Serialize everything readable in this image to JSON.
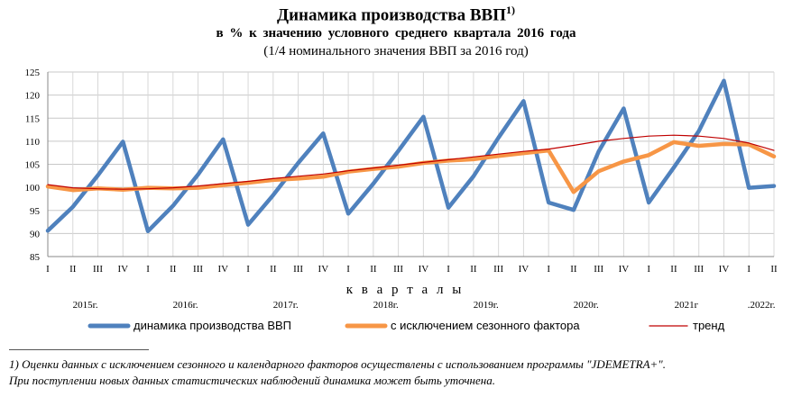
{
  "chart_data": {
    "type": "line",
    "title": "Динамика производства ВВП",
    "title_superscript": "1)",
    "subtitle": "в % к значению условного среднего квартала 2016 года",
    "subtitle2": "(1/4 номинального значения ВВП за 2016 год)",
    "xlabel": "к в а р т а л ы",
    "ylim": [
      85,
      125
    ],
    "yticks": [
      85,
      90,
      95,
      100,
      105,
      110,
      115,
      120,
      125
    ],
    "grid": true,
    "legend_position": "bottom",
    "quarters": [
      "I",
      "II",
      "III",
      "IV",
      "I",
      "II",
      "III",
      "IV",
      "I",
      "II",
      "III",
      "IV",
      "I",
      "II",
      "III",
      "IV",
      "I",
      "II",
      "III",
      "IV",
      "I",
      "II",
      "III",
      "IV",
      "I",
      "II",
      "III",
      "IV",
      "I",
      "II"
    ],
    "years": [
      {
        "label": "2015г.",
        "start": 0,
        "count": 4
      },
      {
        "label": "2016г.",
        "start": 4,
        "count": 4
      },
      {
        "label": "2017г.",
        "start": 8,
        "count": 4
      },
      {
        "label": "2018г.",
        "start": 12,
        "count": 4
      },
      {
        "label": "2019г.",
        "start": 16,
        "count": 4
      },
      {
        "label": "2020г.",
        "start": 20,
        "count": 4
      },
      {
        "label": "2021г",
        "start": 24,
        "count": 4
      },
      {
        "label": ".2022г.",
        "start": 28,
        "count": 2
      }
    ],
    "series": [
      {
        "name": "динамика производства ВВП",
        "color": "#4f81bd",
        "values": [
          90.6,
          95.8,
          102.6,
          109.9,
          90.5,
          96.0,
          102.8,
          110.4,
          91.9,
          98.3,
          105.3,
          111.7,
          94.3,
          100.8,
          107.9,
          115.3,
          95.6,
          102.4,
          110.8,
          118.7,
          96.7,
          95.1,
          107.8,
          117.1,
          96.7,
          104.3,
          112.2,
          123.1,
          99.9,
          100.3
        ]
      },
      {
        "name": "с исключением сезонного фактора",
        "color": "#f79646",
        "values": [
          100.2,
          99.4,
          99.8,
          99.5,
          99.9,
          99.8,
          99.9,
          100.5,
          101.0,
          101.6,
          101.9,
          102.3,
          103.4,
          104.0,
          104.5,
          105.3,
          105.8,
          106.1,
          106.8,
          107.4,
          108.0,
          99.0,
          103.5,
          105.6,
          107.0,
          109.8,
          109.0,
          109.4,
          109.3,
          106.7
        ]
      },
      {
        "name": "тренд",
        "color": "#c00000",
        "values": [
          100.6,
          99.9,
          99.7,
          99.6,
          99.7,
          99.9,
          100.3,
          100.8,
          101.3,
          101.9,
          102.4,
          102.9,
          103.6,
          104.2,
          104.8,
          105.4,
          106.0,
          106.6,
          107.2,
          107.8,
          108.3,
          109.1,
          110.0,
          110.6,
          111.1,
          111.3,
          111.1,
          110.6,
          109.6,
          108.0
        ]
      }
    ]
  },
  "footnote": {
    "line1": "1) Оценки данных с исключением сезонного и календарного факторов осуществлены с использованием программы \"JDEMETRA+\".",
    "line2": "При поступлении новых данных статистических наблюдений динамика может быть уточнена."
  }
}
